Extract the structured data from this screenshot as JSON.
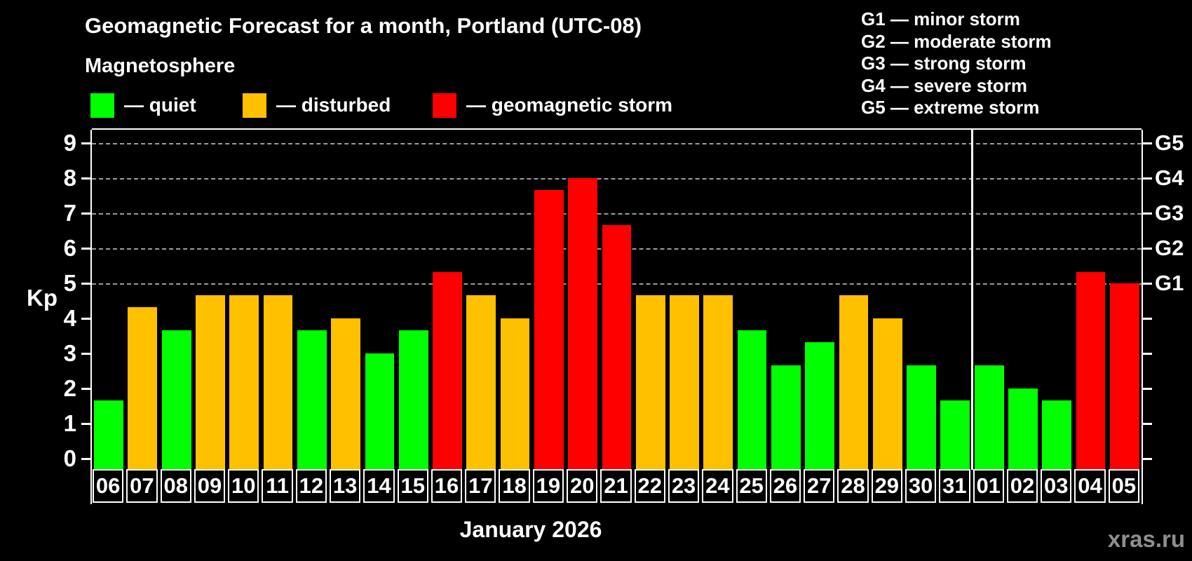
{
  "title": "Geomagnetic Forecast for a month, Portland (UTC-08)",
  "subtitle": "Magnetosphere",
  "legend": {
    "items": [
      {
        "name": "quiet",
        "label": "— quiet",
        "color": "#00ff00"
      },
      {
        "name": "disturbed",
        "label": "— disturbed",
        "color": "#ffc000"
      },
      {
        "name": "storm",
        "label": "— geomagnetic storm",
        "color": "#ff0000"
      }
    ]
  },
  "storm_scale": {
    "lines": [
      "G1 — minor storm",
      "G2 — moderate storm",
      "G3 — strong storm",
      "G4 — severe storm",
      "G5 — extreme storm"
    ]
  },
  "axis": {
    "kp_label": "Kp",
    "kp_ticks": [
      0,
      1,
      2,
      3,
      4,
      5,
      6,
      7,
      8,
      9
    ],
    "g_levels": [
      {
        "label": "G1",
        "kp": 5
      },
      {
        "label": "G2",
        "kp": 6
      },
      {
        "label": "G3",
        "kp": 7
      },
      {
        "label": "G4",
        "kp": 8
      },
      {
        "label": "G5",
        "kp": 9
      }
    ]
  },
  "chart_data": {
    "type": "bar",
    "title": "Geomagnetic Forecast for a month, Portland (UTC-08)",
    "xlabel": "January 2026",
    "ylabel": "Kp",
    "ylim": [
      0,
      9
    ],
    "grid_levels": [
      5,
      6,
      7,
      8,
      9
    ],
    "legend_position": "top",
    "month_separator_after_index": 25,
    "bars": [
      {
        "day": "06",
        "kp": 1.67,
        "level": "quiet"
      },
      {
        "day": "07",
        "kp": 4.33,
        "level": "disturbed"
      },
      {
        "day": "08",
        "kp": 3.67,
        "level": "quiet"
      },
      {
        "day": "09",
        "kp": 4.67,
        "level": "disturbed"
      },
      {
        "day": "10",
        "kp": 4.67,
        "level": "disturbed"
      },
      {
        "day": "11",
        "kp": 4.67,
        "level": "disturbed"
      },
      {
        "day": "12",
        "kp": 3.67,
        "level": "quiet"
      },
      {
        "day": "13",
        "kp": 4.0,
        "level": "disturbed"
      },
      {
        "day": "14",
        "kp": 3.0,
        "level": "quiet"
      },
      {
        "day": "15",
        "kp": 3.67,
        "level": "quiet"
      },
      {
        "day": "16",
        "kp": 5.33,
        "level": "storm"
      },
      {
        "day": "17",
        "kp": 4.67,
        "level": "disturbed"
      },
      {
        "day": "18",
        "kp": 4.0,
        "level": "disturbed"
      },
      {
        "day": "19",
        "kp": 7.67,
        "level": "storm"
      },
      {
        "day": "20",
        "kp": 8.0,
        "level": "storm"
      },
      {
        "day": "21",
        "kp": 6.67,
        "level": "storm"
      },
      {
        "day": "22",
        "kp": 4.67,
        "level": "disturbed"
      },
      {
        "day": "23",
        "kp": 4.67,
        "level": "disturbed"
      },
      {
        "day": "24",
        "kp": 4.67,
        "level": "disturbed"
      },
      {
        "day": "25",
        "kp": 3.67,
        "level": "quiet"
      },
      {
        "day": "26",
        "kp": 2.67,
        "level": "quiet"
      },
      {
        "day": "27",
        "kp": 3.33,
        "level": "quiet"
      },
      {
        "day": "28",
        "kp": 4.67,
        "level": "disturbed"
      },
      {
        "day": "29",
        "kp": 4.0,
        "level": "disturbed"
      },
      {
        "day": "30",
        "kp": 2.67,
        "level": "quiet"
      },
      {
        "day": "31",
        "kp": 1.67,
        "level": "quiet"
      },
      {
        "day": "01",
        "kp": 2.67,
        "level": "quiet"
      },
      {
        "day": "02",
        "kp": 2.0,
        "level": "quiet"
      },
      {
        "day": "03",
        "kp": 1.67,
        "level": "quiet"
      },
      {
        "day": "04",
        "kp": 5.33,
        "level": "storm"
      },
      {
        "day": "05",
        "kp": 5.0,
        "level": "storm"
      }
    ]
  },
  "xlabel": "January 2026",
  "watermark": "xras.ru"
}
